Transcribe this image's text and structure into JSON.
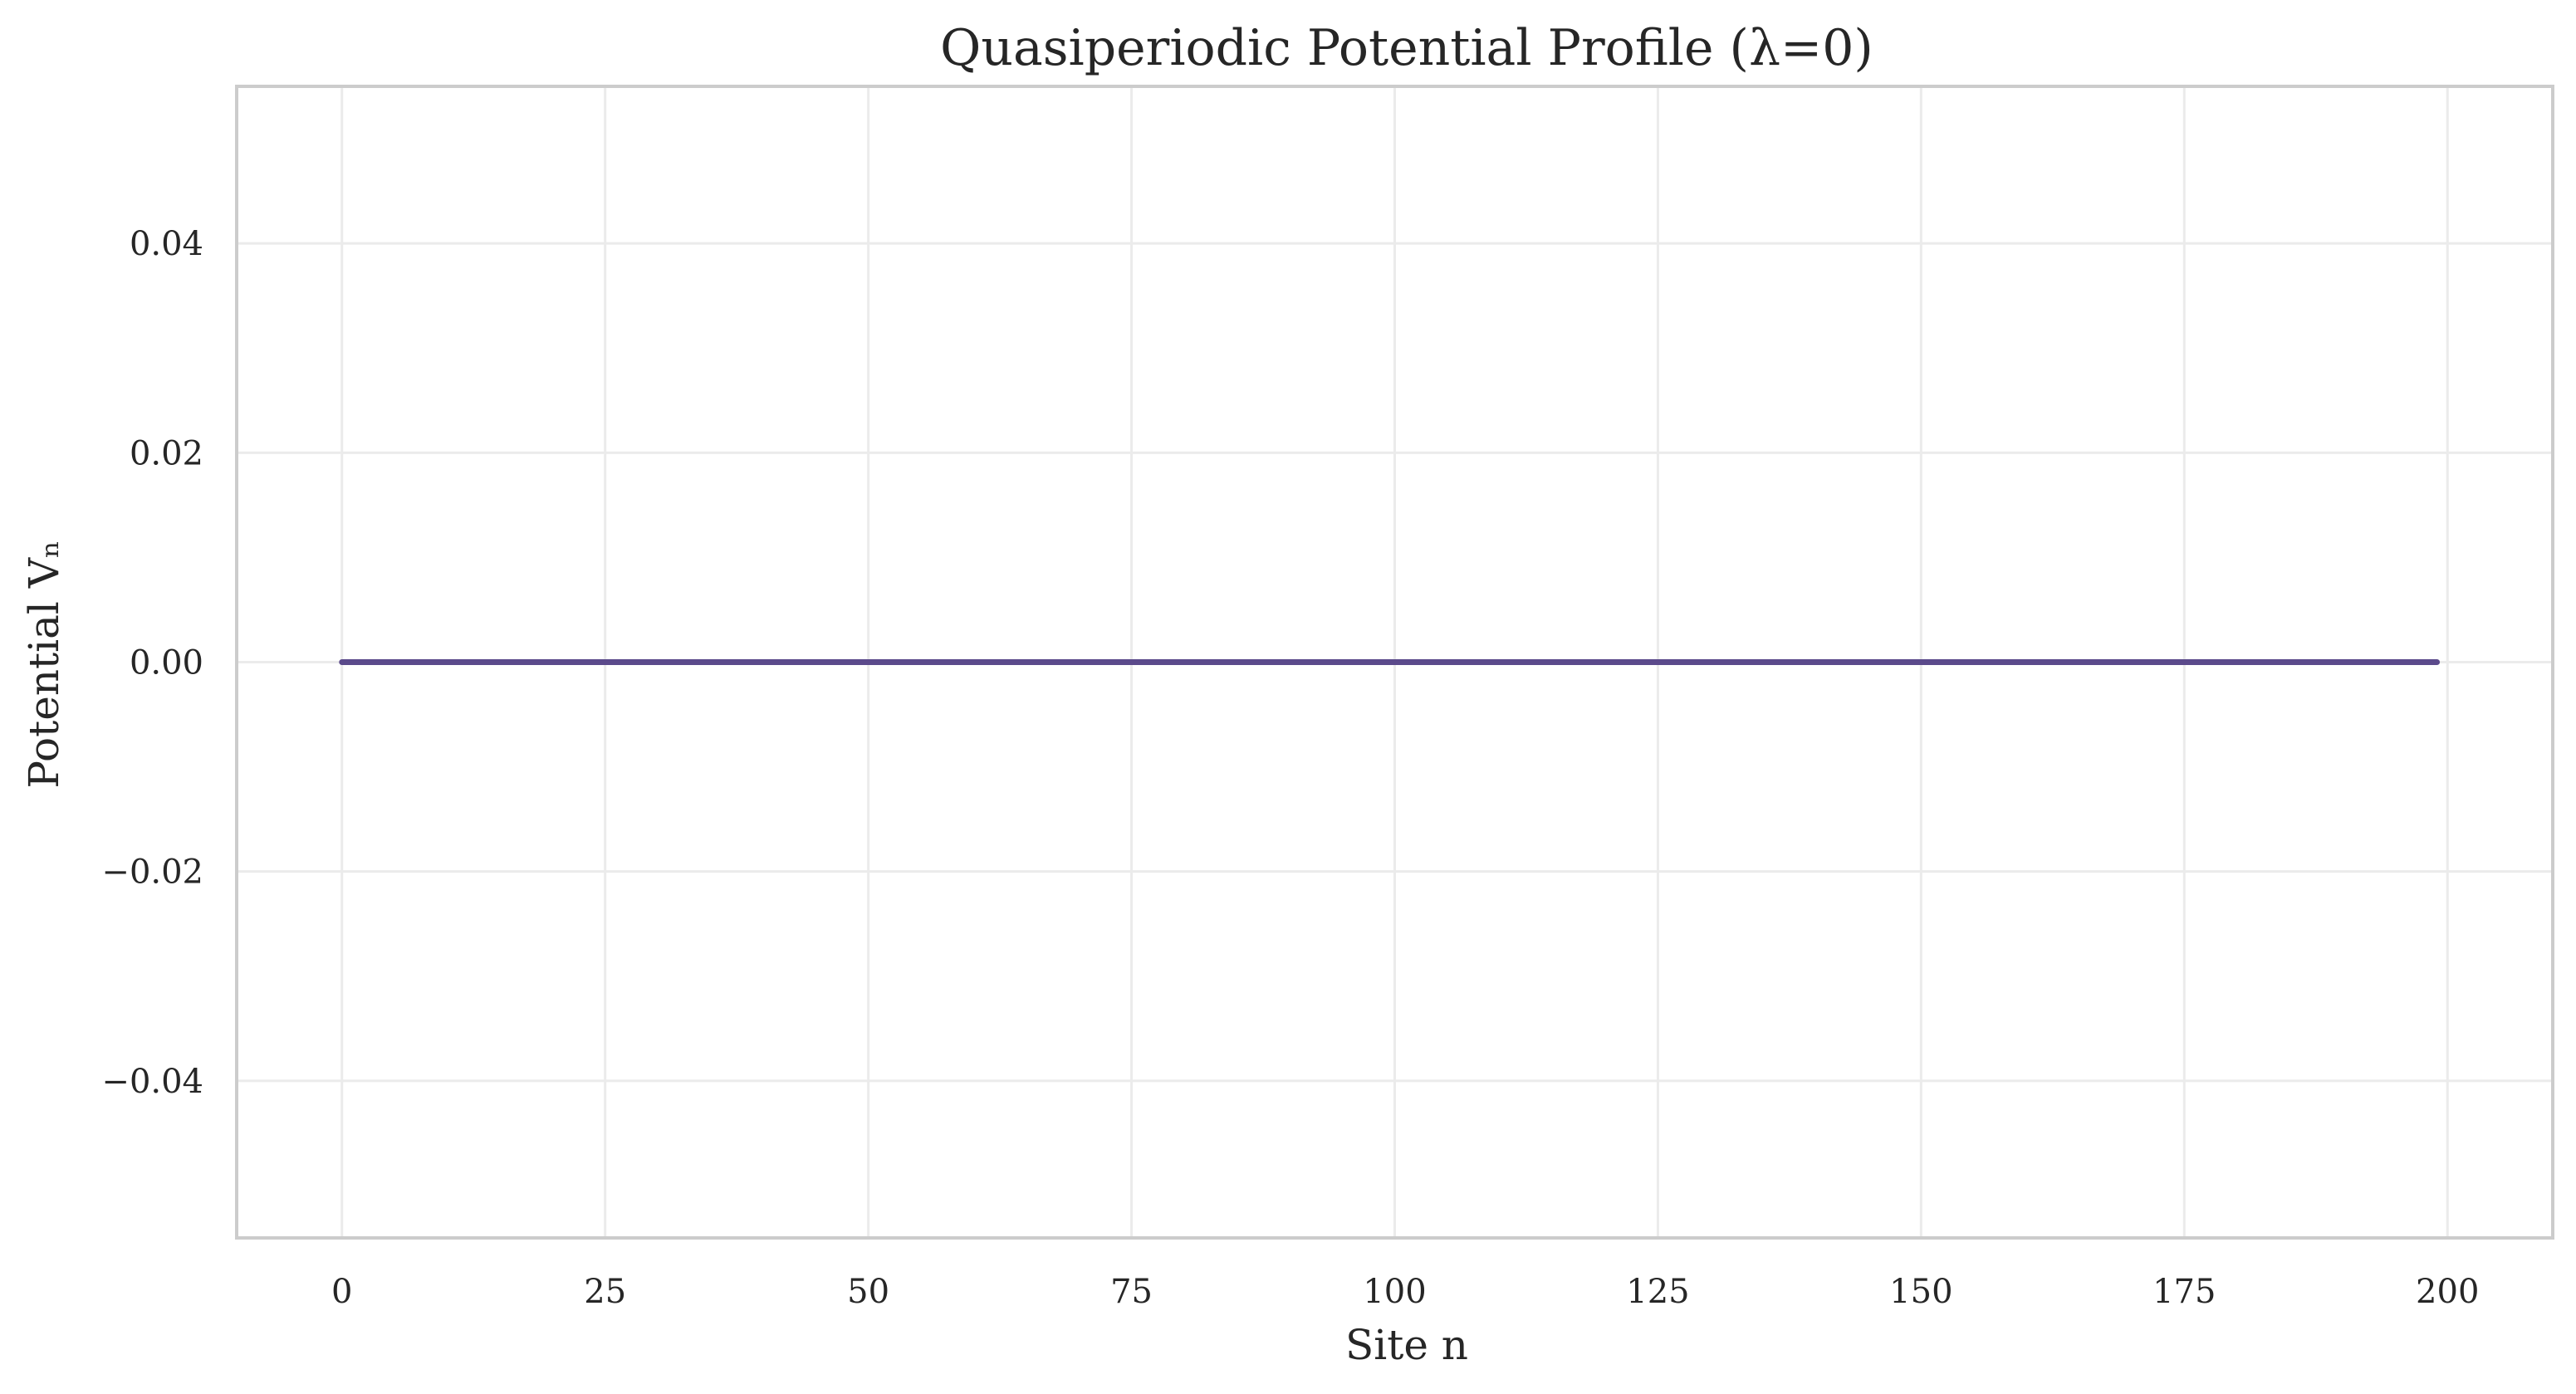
{
  "chart_data": {
    "type": "line",
    "title": "Quasiperiodic Potential Profile (λ=0)",
    "xlabel": "Site n",
    "ylabel": "Potential Vₙ",
    "xlim": [
      -10,
      210
    ],
    "ylim": [
      -0.055,
      0.055
    ],
    "x_ticks": [
      0,
      25,
      50,
      75,
      100,
      125,
      150,
      175,
      200
    ],
    "x_tick_labels": [
      "0",
      "25",
      "50",
      "75",
      "100",
      "125",
      "150",
      "175",
      "200"
    ],
    "y_ticks": [
      -0.04,
      -0.02,
      0.0,
      0.02,
      0.04
    ],
    "y_tick_labels": [
      "−0.04",
      "−0.02",
      "0.00",
      "0.02",
      "0.04"
    ],
    "grid": true,
    "series": [
      {
        "x": [
          0,
          199
        ],
        "y": [
          0.0,
          0.0
        ],
        "color": "#5b4a8b"
      }
    ],
    "colors": {
      "axis_frame": "#cccccc",
      "grid": "#ebebeb",
      "text": "#262626",
      "series": "#5b4a8b"
    }
  }
}
